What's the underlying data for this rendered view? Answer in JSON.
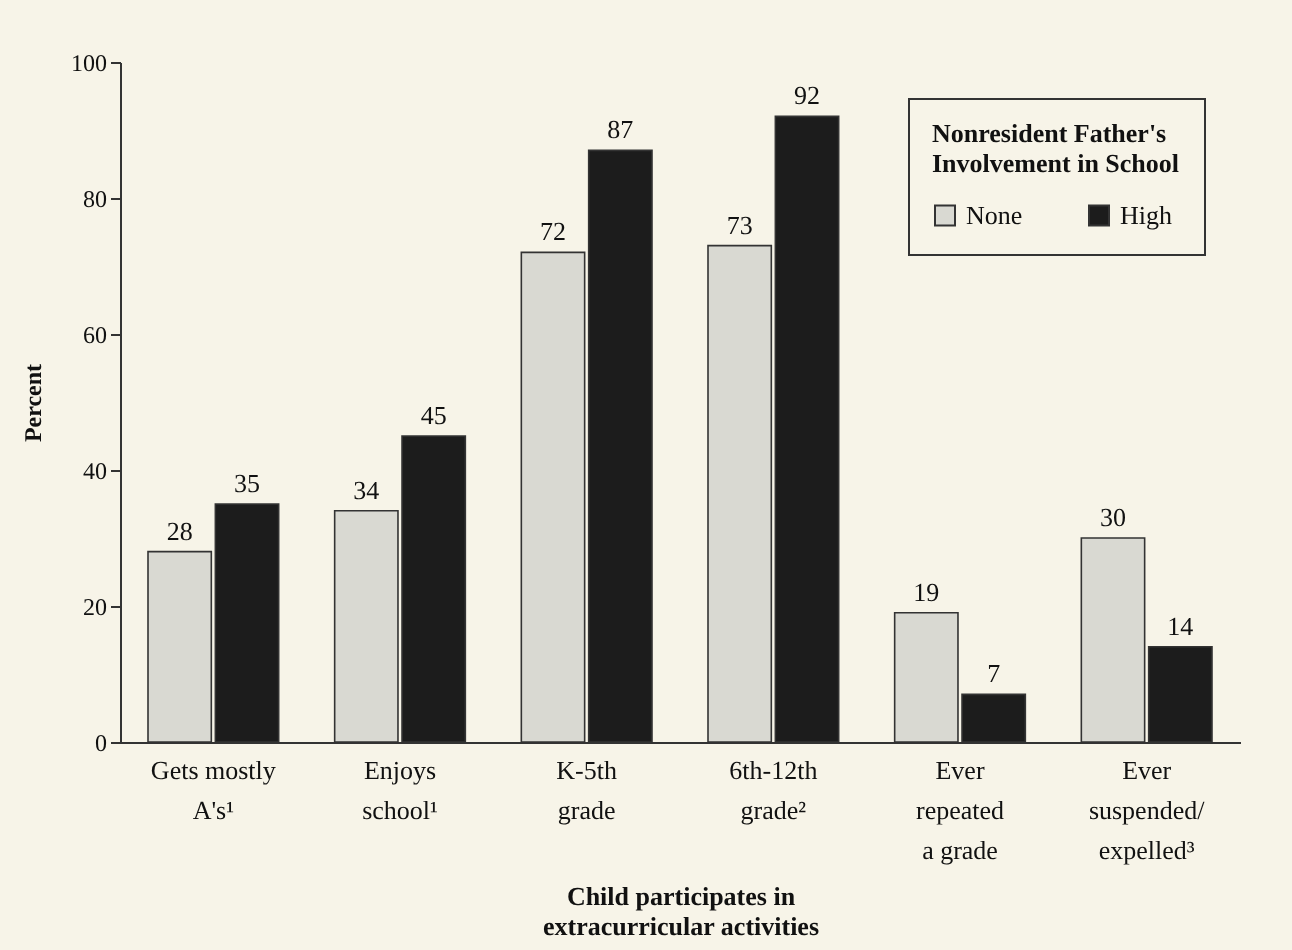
{
  "chart_data": {
    "type": "bar",
    "ylabel": "Percent",
    "xlabel": "Child participates in\nextracurricular activities",
    "legend_title": "Nonresident Father's\nInvolvement in School",
    "categories": [
      "Gets mostly\nA's¹",
      "Enjoys\nschool¹",
      "K-5th\ngrade",
      "6th-12th\ngrade²",
      "Ever\nrepeated\na grade",
      "Ever\nsuspended/\nexpelled³"
    ],
    "series": [
      {
        "name": "None",
        "color": "#d9d9d2",
        "values": [
          28,
          34,
          72,
          73,
          19,
          30
        ]
      },
      {
        "name": "High",
        "color": "#1c1c1c",
        "values": [
          35,
          45,
          87,
          92,
          7,
          14
        ]
      }
    ],
    "ylim": [
      0,
      100
    ],
    "yticks": [
      0,
      20,
      40,
      60,
      80,
      100
    ],
    "grid": false,
    "legend": "top right",
    "data_labels": true
  }
}
